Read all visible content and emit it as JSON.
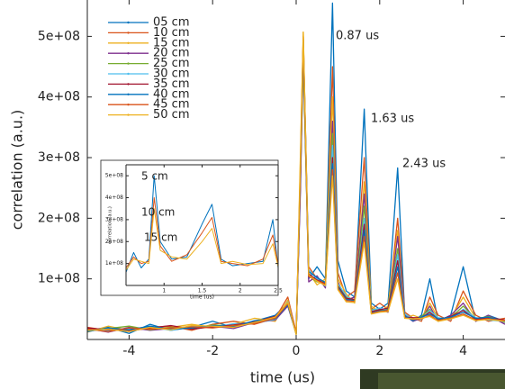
{
  "chart_data": [
    {
      "type": "line",
      "xlabel": "time (us)",
      "ylabel": "correlation (a.u.)",
      "xlim": [
        -5,
        5
      ],
      "ylim": [
        0,
        560000000
      ],
      "xticks": [
        -4,
        -2,
        0,
        2,
        4
      ],
      "yticks": [
        {
          "value": 100000000,
          "label": "1e+08"
        },
        {
          "value": 200000000,
          "label": "2e+08"
        },
        {
          "value": 300000000,
          "label": "3e+08"
        },
        {
          "value": 400000000,
          "label": "4e+08"
        },
        {
          "value": 500000000,
          "label": "5e+08"
        }
      ],
      "legend": "upper left",
      "annotations": [
        {
          "text": "0.87 us",
          "color": "#000000"
        },
        {
          "text": "1.63 us",
          "color": "#000000"
        },
        {
          "text": "2.43 us",
          "color": "#000000"
        }
      ],
      "x": [
        -5,
        -4.5,
        -4,
        -3.5,
        -3,
        -2.5,
        -2,
        -1.5,
        -1,
        -0.5,
        -0.2,
        0,
        0.1,
        0.17,
        0.3,
        0.5,
        0.7,
        0.87,
        1.0,
        1.2,
        1.4,
        1.63,
        1.8,
        2.0,
        2.2,
        2.43,
        2.6,
        2.8,
        3.0,
        3.2,
        3.4,
        3.7,
        4.0,
        4.3,
        4.6,
        5.0
      ],
      "series": [
        {
          "name": "05 cm",
          "color": "#0072bd",
          "values": [
            15000000.0,
            20000000.0,
            10000000.0,
            25000000.0,
            15000000.0,
            20000000.0,
            30000000.0,
            20000000.0,
            30000000.0,
            40000000.0,
            60000000.0,
            10000000.0,
            250000000.0,
            480000000.0,
            100000000.0,
            120000000.0,
            100000000.0,
            555000000.0,
            130000000.0,
            80000000.0,
            70000000.0,
            380000000.0,
            60000000.0,
            50000000.0,
            60000000.0,
            283000000.0,
            40000000.0,
            30000000.0,
            40000000.0,
            100000000.0,
            30000000.0,
            40000000.0,
            120000000.0,
            30000000.0,
            40000000.0,
            30000000.0
          ]
        },
        {
          "name": "10 cm",
          "color": "#d95319",
          "values": [
            20000000.0,
            15000000.0,
            18000000.0,
            20000000.0,
            22000000.0,
            15000000.0,
            25000000.0,
            30000000.0,
            25000000.0,
            35000000.0,
            70000000.0,
            12000000.0,
            280000000.0,
            500000000.0,
            120000000.0,
            100000000.0,
            90000000.0,
            450000000.0,
            110000000.0,
            70000000.0,
            80000000.0,
            300000000.0,
            50000000.0,
            60000000.0,
            50000000.0,
            200000000.0,
            45000000.0,
            35000000.0,
            30000000.0,
            70000000.0,
            40000000.0,
            30000000.0,
            80000000.0,
            40000000.0,
            30000000.0,
            35000000.0
          ]
        },
        {
          "name": "15 cm",
          "color": "#edb120",
          "values": [
            12000000.0,
            22000000.0,
            15000000.0,
            18000000.0,
            20000000.0,
            25000000.0,
            20000000.0,
            25000000.0,
            35000000.0,
            30000000.0,
            65000000.0,
            8000000.0,
            300000000.0,
            507000000.0,
            110000000.0,
            90000000.0,
            100000000.0,
            400000000.0,
            100000000.0,
            75000000.0,
            60000000.0,
            260000000.0,
            55000000.0,
            45000000.0,
            55000000.0,
            180000000.0,
            35000000.0,
            40000000.0,
            35000000.0,
            60000000.0,
            35000000.0,
            35000000.0,
            70000000.0,
            35000000.0,
            35000000.0,
            30000000.0
          ]
        },
        {
          "name": "20 cm",
          "color": "#7e2f8e",
          "values": [
            18000000.0,
            12000000.0,
            20000000.0,
            15000000.0,
            18000000.0,
            20000000.0,
            22000000.0,
            18000000.0,
            28000000.0,
            32000000.0,
            55000000.0,
            10000000.0,
            240000000.0,
            470000000.0,
            95000000.0,
            105000000.0,
            85000000.0,
            360000000.0,
            95000000.0,
            65000000.0,
            70000000.0,
            240000000.0,
            45000000.0,
            50000000.0,
            45000000.0,
            170000000.0,
            40000000.0,
            30000000.0,
            35000000.0,
            55000000.0,
            30000000.0,
            40000000.0,
            60000000.0,
            30000000.0,
            40000000.0,
            25000000.0
          ]
        },
        {
          "name": "25 cm",
          "color": "#77ac30",
          "values": [
            14000000.0,
            18000000.0,
            22000000.0,
            16000000.0,
            20000000.0,
            18000000.0,
            24000000.0,
            22000000.0,
            30000000.0,
            36000000.0,
            58000000.0,
            9000000.0,
            260000000.0,
            460000000.0,
            105000000.0,
            95000000.0,
            95000000.0,
            340000000.0,
            90000000.0,
            70000000.0,
            65000000.0,
            220000000.0,
            50000000.0,
            48000000.0,
            50000000.0,
            150000000.0,
            38000000.0,
            32000000.0,
            38000000.0,
            50000000.0,
            32000000.0,
            36000000.0,
            55000000.0,
            34000000.0,
            38000000.0,
            28000000.0
          ]
        },
        {
          "name": "30 cm",
          "color": "#4dbeee",
          "values": [
            16000000.0,
            14000000.0,
            17000000.0,
            21000000.0,
            15000000.0,
            22000000.0,
            20000000.0,
            26000000.0,
            27000000.0,
            33000000.0,
            62000000.0,
            11000000.0,
            270000000.0,
            490000000.0,
            115000000.0,
            100000000.0,
            88000000.0,
            320000000.0,
            92000000.0,
            72000000.0,
            62000000.0,
            200000000.0,
            48000000.0,
            52000000.0,
            47000000.0,
            140000000.0,
            42000000.0,
            34000000.0,
            33000000.0,
            48000000.0,
            36000000.0,
            33000000.0,
            50000000.0,
            36000000.0,
            32000000.0,
            30000000.0
          ]
        },
        {
          "name": "35 cm",
          "color": "#a2142f",
          "values": [
            19000000.0,
            16000000.0,
            14000000.0,
            19000000.0,
            23000000.0,
            17000000.0,
            21000000.0,
            24000000.0,
            29000000.0,
            38000000.0,
            60000000.0,
            10000000.0,
            255000000.0,
            485000000.0,
            108000000.0,
            98000000.0,
            92000000.0,
            300000000.0,
            88000000.0,
            68000000.0,
            66000000.0,
            190000000.0,
            46000000.0,
            49000000.0,
            52000000.0,
            130000000.0,
            37000000.0,
            36000000.0,
            36000000.0,
            45000000.0,
            33000000.0,
            38000000.0,
            48000000.0,
            33000000.0,
            36000000.0,
            32000000.0
          ]
        },
        {
          "name": "40 cm",
          "color": "#0072bd",
          "values": [
            13000000.0,
            19000000.0,
            16000000.0,
            22000000.0,
            17000000.0,
            19000000.0,
            23000000.0,
            21000000.0,
            31000000.0,
            34000000.0,
            57000000.0,
            9000000.0,
            265000000.0,
            495000000.0,
            112000000.0,
            102000000.0,
            94000000.0,
            290000000.0,
            86000000.0,
            66000000.0,
            64000000.0,
            180000000.0,
            44000000.0,
            47000000.0,
            49000000.0,
            120000000.0,
            39000000.0,
            31000000.0,
            37000000.0,
            42000000.0,
            34000000.0,
            37000000.0,
            45000000.0,
            35000000.0,
            37000000.0,
            29000000.0
          ]
        },
        {
          "name": "45 cm",
          "color": "#d95319",
          "values": [
            17000000.0,
            13000000.0,
            19000000.0,
            17000000.0,
            19000000.0,
            21000000.0,
            19000000.0,
            23000000.0,
            26000000.0,
            35000000.0,
            59000000.0,
            12000000.0,
            275000000.0,
            500000000.0,
            104000000.0,
            97000000.0,
            91000000.0,
            280000000.0,
            84000000.0,
            64000000.0,
            63000000.0,
            170000000.0,
            43000000.0,
            46000000.0,
            48000000.0,
            110000000.0,
            36000000.0,
            33000000.0,
            34000000.0,
            40000000.0,
            31000000.0,
            35000000.0,
            42000000.0,
            32000000.0,
            34000000.0,
            31000000.0
          ]
        },
        {
          "name": "50 cm",
          "color": "#edb120",
          "values": [
            15000000.0,
            17000000.0,
            13000000.0,
            20000000.0,
            16000000.0,
            23000000.0,
            22000000.0,
            20000000.0,
            28000000.0,
            37000000.0,
            61000000.0,
            8000000.0,
            290000000.0,
            507000000.0,
            106000000.0,
            96000000.0,
            89000000.0,
            270000000.0,
            82000000.0,
            62000000.0,
            61000000.0,
            160000000.0,
            42000000.0,
            45000000.0,
            46000000.0,
            100000000.0,
            35000000.0,
            34000000.0,
            35000000.0,
            38000000.0,
            30000000.0,
            34000000.0,
            40000000.0,
            31000000.0,
            33000000.0,
            30000000.0
          ]
        }
      ]
    },
    {
      "type": "line",
      "xlabel": "time (us)",
      "ylabel": "correlation (a.u.)",
      "xlim": [
        0.5,
        2.5
      ],
      "ylim": [
        0,
        550000000
      ],
      "xticks": [
        1,
        1.5,
        2,
        2.5
      ],
      "yticks": [
        {
          "value": 100000000,
          "label": "1e+08"
        },
        {
          "value": 200000000,
          "label": "2e+08"
        },
        {
          "value": 300000000,
          "label": "3e+08"
        },
        {
          "value": 400000000,
          "label": "4e+08"
        },
        {
          "value": 500000000,
          "label": "5e+08"
        }
      ],
      "annotations": [
        {
          "text": "5 cm",
          "color": "#0072bd"
        },
        {
          "text": "10 cm",
          "color": "#d95319"
        },
        {
          "text": "15 cm",
          "color": "#edb120"
        }
      ],
      "x": [
        0.5,
        0.6,
        0.7,
        0.8,
        0.87,
        0.95,
        1.1,
        1.3,
        1.5,
        1.63,
        1.75,
        1.9,
        2.1,
        2.3,
        2.43,
        2.5
      ],
      "series": [
        {
          "color": "#0072bd",
          "values": [
            60000000.0,
            150000000.0,
            80000000.0,
            120000000.0,
            500000000.0,
            200000000.0,
            120000000.0,
            130000000.0,
            280000000.0,
            370000000.0,
            120000000.0,
            90000000.0,
            100000000.0,
            110000000.0,
            300000000.0,
            80000000.0
          ]
        },
        {
          "color": "#d95319",
          "values": [
            80000000.0,
            130000000.0,
            100000000.0,
            110000000.0,
            400000000.0,
            180000000.0,
            110000000.0,
            140000000.0,
            240000000.0,
            310000000.0,
            110000000.0,
            100000000.0,
            90000000.0,
            120000000.0,
            230000000.0,
            90000000.0
          ]
        },
        {
          "color": "#edb120",
          "values": [
            70000000.0,
            120000000.0,
            110000000.0,
            100000000.0,
            350000000.0,
            160000000.0,
            130000000.0,
            120000000.0,
            200000000.0,
            260000000.0,
            100000000.0,
            110000000.0,
            95000000.0,
            100000000.0,
            190000000.0,
            85000000.0
          ]
        }
      ]
    }
  ]
}
